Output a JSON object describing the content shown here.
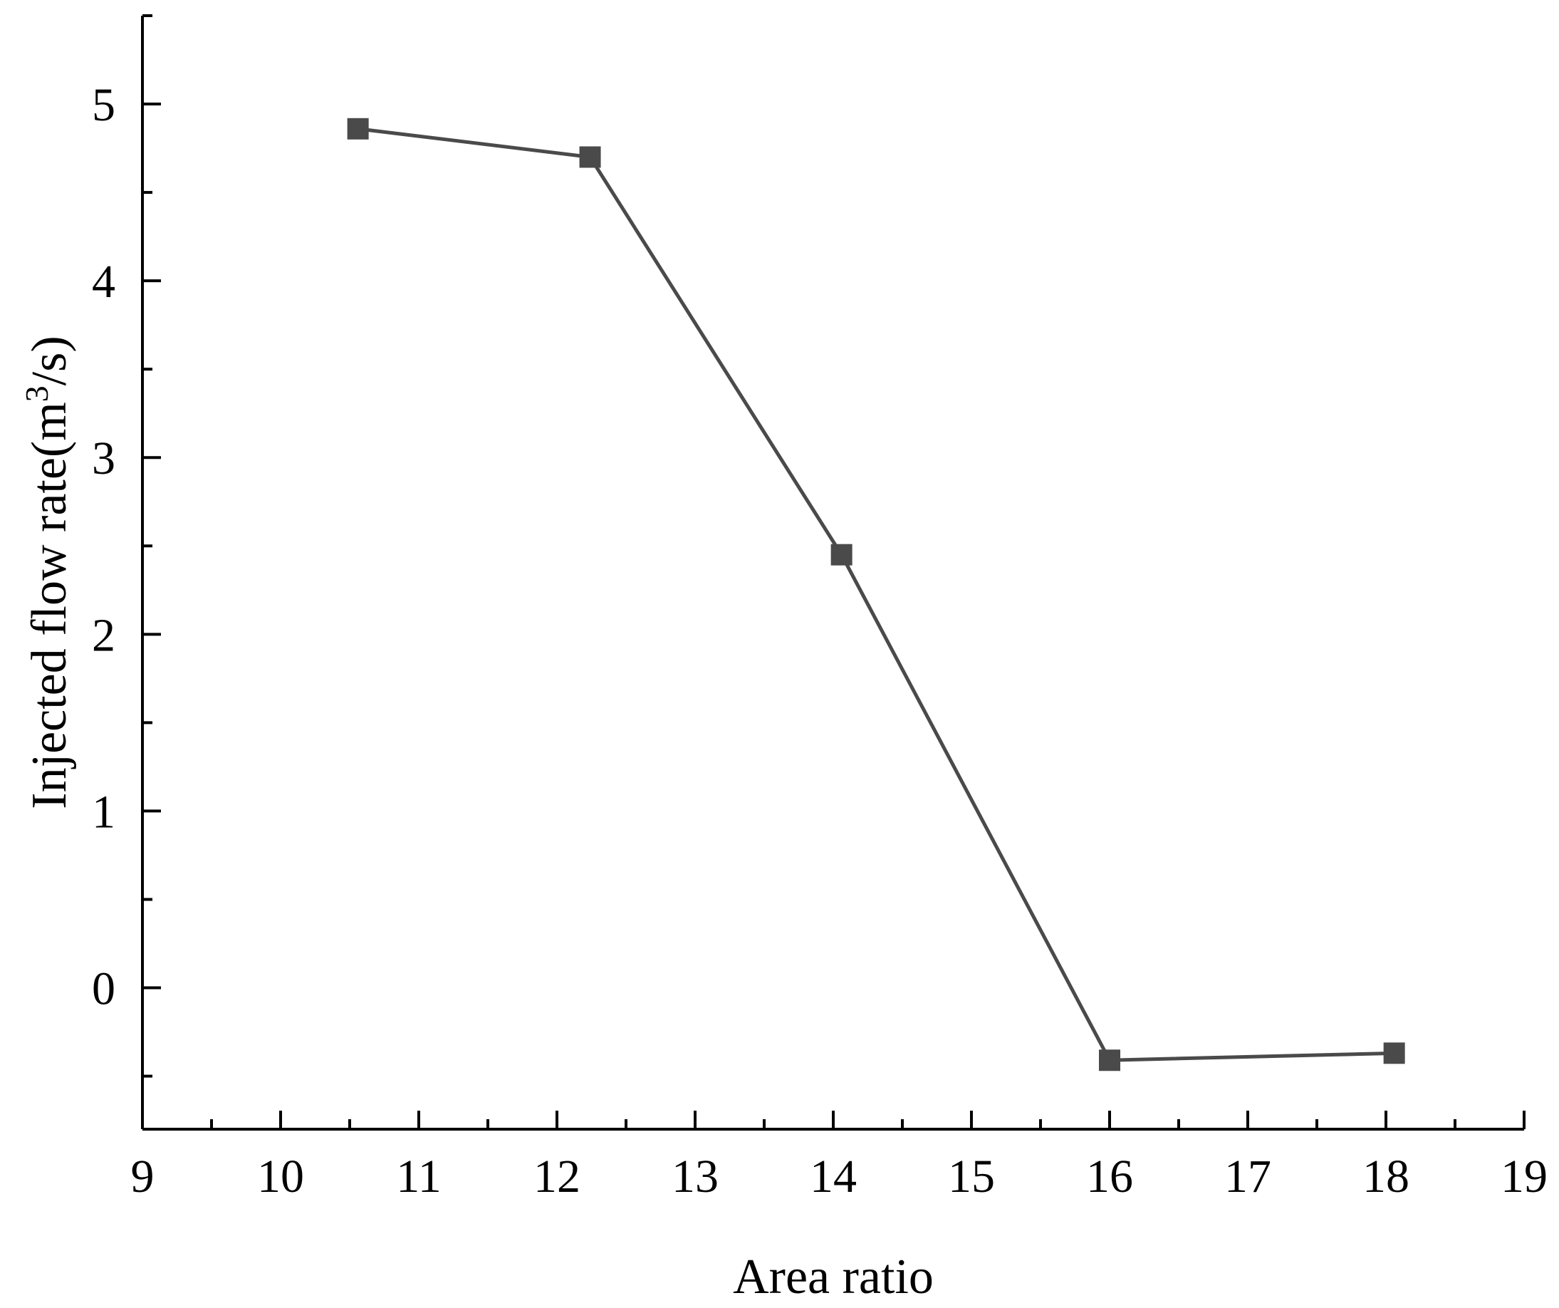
{
  "chart_data": {
    "type": "line",
    "title": "",
    "xlabel": "Area ratio",
    "ylabel_main": "Injected flow rate(m",
    "ylabel_sup": "3",
    "ylabel_tail": "/s)",
    "xlim": [
      9,
      19
    ],
    "ylim": [
      -0.8,
      5.5
    ],
    "xticks": [
      9,
      10,
      11,
      12,
      13,
      14,
      15,
      16,
      17,
      18,
      19
    ],
    "yticks": [
      0,
      1,
      2,
      3,
      4,
      5
    ],
    "x_minor_step": 0.5,
    "y_minor_step": 0.5,
    "grid": false,
    "legend": "none",
    "colors": {
      "line": "#4a4a4a",
      "marker": "#4a4a4a",
      "axis": "#000000"
    },
    "series": [
      {
        "x": [
          10.56,
          12.24,
          14.06,
          16.0,
          18.06
        ],
        "y": [
          4.86,
          4.7,
          2.45,
          -0.41,
          -0.37
        ]
      }
    ]
  }
}
